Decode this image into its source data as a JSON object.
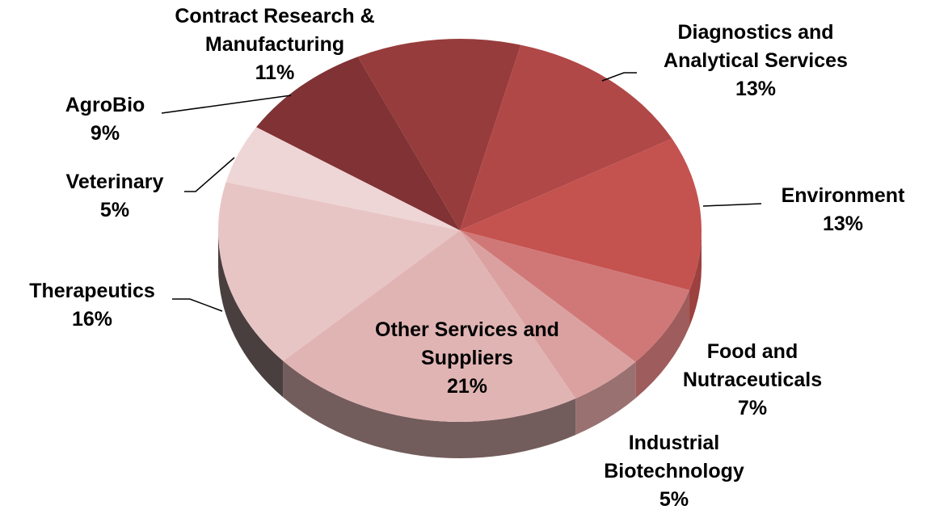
{
  "chart_data": {
    "type": "pie",
    "categories": [
      "Contract Research & Manufacturing",
      "Diagnostics and Analytical Services",
      "Environment",
      "Food and Nutraceuticals",
      "Industrial Biotechnology",
      "Other Services and Suppliers",
      "Therapeutics",
      "Veterinary",
      "AgroBio"
    ],
    "values": [
      11,
      13,
      13,
      7,
      5,
      21,
      16,
      5,
      9
    ],
    "value_labels": [
      "11%",
      "13%",
      "13%",
      "7%",
      "5%",
      "21%",
      "16%",
      "5%",
      "9%"
    ],
    "colors": [
      "#973c3c",
      "#b04847",
      "#c4524f",
      "#d07878",
      "#dba1a1",
      "#e1b4b4",
      "#e8c5c5",
      "#efd6d6",
      "#803234"
    ]
  }
}
